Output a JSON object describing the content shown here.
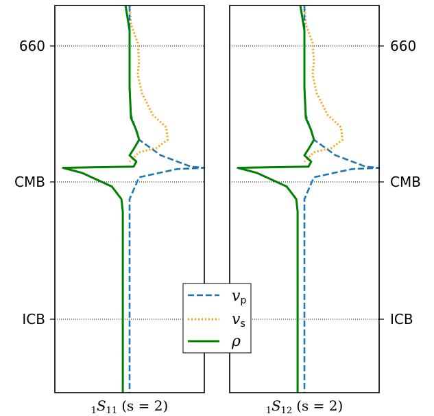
{
  "chart_data": {
    "type": "line",
    "layout": "two-panel sensitivity kernel plot, shared depth axis",
    "y_axis": {
      "labels": [
        "660",
        "CMB",
        "ICB"
      ],
      "left_ticks": true,
      "right_ticks": true,
      "reference_lines": "dotted horizontal lines at 660, CMB, ICB"
    },
    "colors": {
      "vp": "#1f77b4",
      "vs": "#ff9f0e",
      "rho": "#008000"
    },
    "legend": {
      "placement": "center-bottom",
      "entries": [
        {
          "key": "vp",
          "symbol": "v",
          "sub": "p",
          "style": "dashed"
        },
        {
          "key": "vs",
          "symbol": "v",
          "sub": "s",
          "style": "dotted"
        },
        {
          "key": "rho",
          "symbol": "ρ",
          "sub": "",
          "style": "solid"
        }
      ]
    },
    "panels": [
      {
        "mode_prefix": "1",
        "mode_letter": "S",
        "mode_sub": "11",
        "s_label": "(s = 2)",
        "vs": [
          [
            0.05,
            0
          ],
          [
            0.06,
            30
          ],
          [
            0.11,
            60
          ],
          [
            0.12,
            90
          ],
          [
            0.11,
            110
          ],
          [
            0.14,
            140
          ],
          [
            0.22,
            175
          ],
          [
            0.32,
            195
          ],
          [
            0.33,
            215
          ],
          [
            0.25,
            228
          ],
          [
            0.12,
            235
          ],
          [
            0.05,
            250
          ]
        ],
        "vp": [
          [
            0.05,
            0
          ],
          [
            0.05,
            50
          ],
          [
            0.05,
            100
          ],
          [
            0.05,
            135
          ],
          [
            0.06,
            175
          ],
          [
            0.12,
            215
          ],
          [
            0.28,
            240
          ],
          [
            0.5,
            258
          ],
          [
            0.6,
            260
          ],
          [
            0.4,
            262
          ],
          [
            0.12,
            275
          ],
          [
            0.05,
            310
          ],
          [
            0.05,
            350
          ],
          [
            0.05,
            620
          ]
        ],
        "rho": [
          [
            0.02,
            0
          ],
          [
            0.05,
            40
          ],
          [
            0.05,
            60
          ],
          [
            0.05,
            90
          ],
          [
            0.05,
            130
          ],
          [
            0.06,
            180
          ],
          [
            0.1,
            200
          ],
          [
            0.12,
            215
          ],
          [
            0.08,
            230
          ],
          [
            0.05,
            240
          ],
          [
            0.1,
            250
          ],
          [
            0.08,
            258
          ],
          [
            -0.44,
            260
          ],
          [
            -0.3,
            268
          ],
          [
            -0.08,
            290
          ],
          [
            -0.01,
            310
          ],
          [
            0.0,
            330
          ],
          [
            0.0,
            620
          ]
        ]
      },
      {
        "mode_prefix": "1",
        "mode_letter": "S",
        "mode_sub": "12",
        "s_label": "(s = 2)",
        "vs": [
          [
            0.05,
            0
          ],
          [
            0.06,
            30
          ],
          [
            0.11,
            60
          ],
          [
            0.12,
            90
          ],
          [
            0.11,
            110
          ],
          [
            0.14,
            140
          ],
          [
            0.22,
            175
          ],
          [
            0.32,
            195
          ],
          [
            0.33,
            215
          ],
          [
            0.25,
            228
          ],
          [
            0.12,
            235
          ],
          [
            0.05,
            250
          ]
        ],
        "vp": [
          [
            0.05,
            0
          ],
          [
            0.05,
            50
          ],
          [
            0.05,
            100
          ],
          [
            0.05,
            135
          ],
          [
            0.06,
            175
          ],
          [
            0.12,
            215
          ],
          [
            0.28,
            240
          ],
          [
            0.5,
            258
          ],
          [
            0.6,
            260
          ],
          [
            0.4,
            262
          ],
          [
            0.12,
            275
          ],
          [
            0.05,
            310
          ],
          [
            0.05,
            350
          ],
          [
            0.05,
            620
          ]
        ],
        "rho": [
          [
            0.02,
            0
          ],
          [
            0.05,
            40
          ],
          [
            0.05,
            60
          ],
          [
            0.05,
            90
          ],
          [
            0.05,
            130
          ],
          [
            0.06,
            180
          ],
          [
            0.1,
            200
          ],
          [
            0.12,
            215
          ],
          [
            0.08,
            230
          ],
          [
            0.05,
            240
          ],
          [
            0.1,
            250
          ],
          [
            0.08,
            258
          ],
          [
            -0.44,
            260
          ],
          [
            -0.3,
            268
          ],
          [
            -0.08,
            290
          ],
          [
            -0.01,
            310
          ],
          [
            0.0,
            330
          ],
          [
            0.0,
            620
          ]
        ]
      }
    ]
  }
}
